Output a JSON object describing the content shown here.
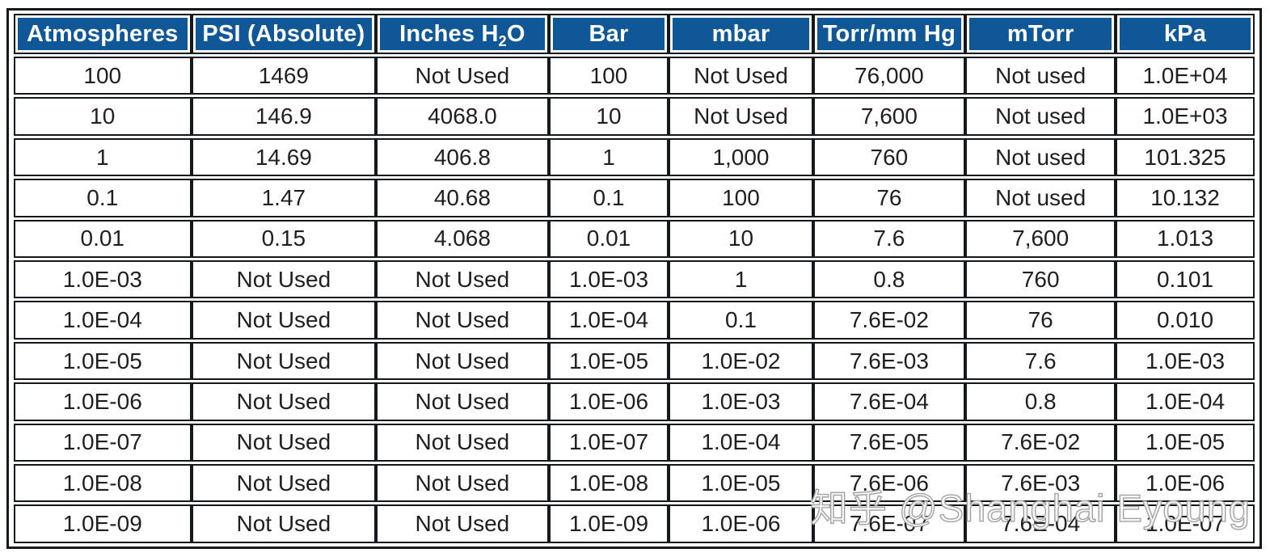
{
  "page": {
    "background_color": "#ffffff",
    "header_bg_color": "#0f5796",
    "header_text_color": "#ffffff",
    "grid_border_color": "#15191d",
    "body_text_color": "#1f1f1f"
  },
  "table": {
    "headers": [
      {
        "label": "Atmospheres"
      },
      {
        "label": "PSI (Absolute)"
      },
      {
        "pre": "Inches H",
        "sub": "2",
        "post": "O"
      },
      {
        "label": "Bar"
      },
      {
        "label": "mbar"
      },
      {
        "label": "Torr/mm Hg"
      },
      {
        "label": "mTorr"
      },
      {
        "label": "kPa"
      }
    ]
  },
  "chart_data": {
    "type": "table",
    "columns": [
      "Atmospheres",
      "PSI (Absolute)",
      "Inches H2O",
      "Bar",
      "mbar",
      "Torr/mm Hg",
      "mTorr",
      "kPa"
    ],
    "rows": [
      [
        "100",
        "1469",
        "Not Used",
        "100",
        "Not Used",
        "76,000",
        "Not used",
        "1.0E+04"
      ],
      [
        "10",
        "146.9",
        "4068.0",
        "10",
        "Not Used",
        "7,600",
        "Not used",
        "1.0E+03"
      ],
      [
        "1",
        "14.69",
        "406.8",
        "1",
        "1,000",
        "760",
        "Not used",
        "101.325"
      ],
      [
        "0.1",
        "1.47",
        "40.68",
        "0.1",
        "100",
        "76",
        "Not used",
        "10.132"
      ],
      [
        "0.01",
        "0.15",
        "4.068",
        "0.01",
        "10",
        "7.6",
        "7,600",
        "1.013"
      ],
      [
        "1.0E-03",
        "Not Used",
        "Not Used",
        "1.0E-03",
        "1",
        "0.8",
        "760",
        "0.101"
      ],
      [
        "1.0E-04",
        "Not Used",
        "Not Used",
        "1.0E-04",
        "0.1",
        "7.6E-02",
        "76",
        "0.010"
      ],
      [
        "1.0E-05",
        "Not Used",
        "Not Used",
        "1.0E-05",
        "1.0E-02",
        "7.6E-03",
        "7.6",
        "1.0E-03"
      ],
      [
        "1.0E-06",
        "Not Used",
        "Not Used",
        "1.0E-06",
        "1.0E-03",
        "7.6E-04",
        "0.8",
        "1.0E-04"
      ],
      [
        "1.0E-07",
        "Not Used",
        "Not Used",
        "1.0E-07",
        "1.0E-04",
        "7.6E-05",
        "7.6E-02",
        "1.0E-05"
      ],
      [
        "1.0E-08",
        "Not Used",
        "Not Used",
        "1.0E-08",
        "1.0E-05",
        "7.6E-06",
        "7.6E-03",
        "1.0E-06"
      ],
      [
        "1.0E-09",
        "Not Used",
        "Not Used",
        "1.0E-09",
        "1.0E-06",
        "7.6E-07",
        "7.6E-04",
        "1.0E-07"
      ]
    ]
  },
  "watermark": {
    "text": "知乎 @Shanghai Eyoung"
  }
}
